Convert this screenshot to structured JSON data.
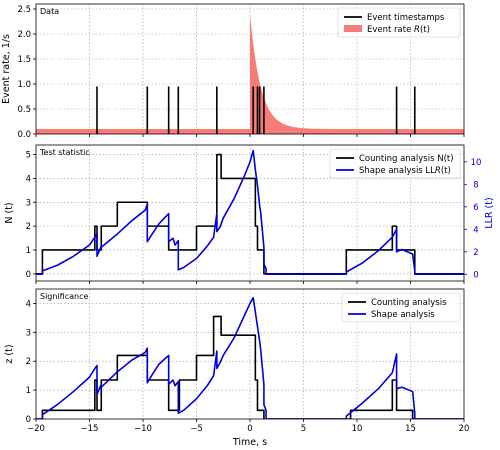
{
  "chart_data": [
    {
      "type": "line",
      "panel_label": "Data",
      "xlabel": "",
      "ylabel": "Event rate, 1/s",
      "xlim": [
        -20,
        20
      ],
      "ylim": [
        0,
        2.6
      ],
      "yticks": [
        0.0,
        0.5,
        1.0,
        1.5,
        2.0,
        2.5
      ],
      "ytick_labels": [
        "0.0",
        "0.5",
        "1.0",
        "1.5",
        "2.0",
        "2.5"
      ],
      "grid": true,
      "legend_position": "top-right",
      "legend": [
        "Event timestamps",
        "Event rate R(t)"
      ],
      "colors": {
        "timestamps": "#000000",
        "rate": "#f77b77"
      },
      "event_timestamps": [
        -14.3,
        -9.6,
        -7.6,
        -6.7,
        -3.1,
        0.3,
        0.7,
        0.9,
        1.3,
        13.7,
        15.4
      ],
      "event_line_height": 0.95,
      "rate_baseline": 0.1,
      "rate_peak": 2.4,
      "rate_onset": 0.0,
      "rate_decay_s": 1.0
    },
    {
      "type": "line",
      "panel_label": "Test statistic",
      "xlabel": "",
      "ylabel": "N (t)",
      "y2label": "LLR (t)",
      "xlim": [
        -20,
        20
      ],
      "ylim": [
        -0.3,
        5.4
      ],
      "y2lim": [
        -0.6,
        11.5
      ],
      "yticks": [
        0,
        1,
        2,
        3,
        4,
        5
      ],
      "ytick_labels": [
        "0",
        "1",
        "2",
        "3",
        "4",
        "5"
      ],
      "y2ticks": [
        0,
        2,
        4,
        6,
        8,
        10
      ],
      "y2tick_labels": [
        "0",
        "2",
        "4",
        "6",
        "8",
        "10"
      ],
      "grid": true,
      "legend_position": "top-right",
      "series": [
        {
          "name": "Counting analysis N(t)",
          "color": "#000000",
          "axis": "left",
          "x": [
            -20,
            -19.4,
            -19.4,
            -14.5,
            -14.5,
            -14.3,
            -14.3,
            -13.9,
            -13.9,
            -12.4,
            -12.4,
            -11.7,
            -11.7,
            -9.8,
            -9.8,
            -9.6,
            -9.6,
            -9.2,
            -9.2,
            -7.6,
            -7.6,
            -7.2,
            -7.2,
            -6.6,
            -6.6,
            -5.0,
            -5.0,
            -4.4,
            -4.4,
            -3.4,
            -3.4,
            -3.1,
            -3.1,
            -2.7,
            -2.7,
            0.0,
            0.0,
            0.5,
            0.5,
            0.7,
            0.7,
            0.9,
            0.9,
            1.3,
            1.3,
            1.5,
            1.5,
            9.0,
            9.0,
            9.4,
            9.4,
            13.3,
            13.3,
            13.7,
            13.7,
            15.2,
            15.2,
            15.4,
            15.4,
            20
          ],
          "y": [
            0,
            0,
            1,
            1,
            2,
            2,
            1,
            1,
            2,
            2,
            3,
            3,
            3,
            3,
            3,
            3,
            2,
            2,
            2,
            2,
            1,
            1,
            1,
            1,
            1,
            1,
            2,
            2,
            2,
            2,
            2,
            2,
            5,
            5,
            4,
            4,
            4,
            4,
            2,
            2,
            1,
            1,
            1,
            1,
            0,
            0,
            0,
            0,
            1,
            1,
            1,
            1,
            2,
            2,
            1,
            1,
            1,
            1,
            0,
            0
          ]
        },
        {
          "name": "Shape analysis LLR(t)",
          "color": "#0000dd",
          "axis": "right",
          "x": [
            -20,
            -19.4,
            -19.4,
            -18.0,
            -16.5,
            -15.0,
            -14.5,
            -14.3,
            -14.3,
            -13.9,
            -13.9,
            -12.5,
            -11.0,
            -9.8,
            -9.6,
            -9.6,
            -9.2,
            -8.5,
            -7.6,
            -7.6,
            -7.2,
            -7.0,
            -6.7,
            -6.7,
            -6.2,
            -5.0,
            -4.0,
            -3.4,
            -3.1,
            -3.1,
            -2.8,
            -2.5,
            -1.5,
            -0.5,
            0.0,
            0.3,
            0.5,
            0.7,
            0.9,
            1.0,
            1.3,
            1.3,
            1.5,
            1.5,
            9.0,
            9.0,
            10.5,
            12.0,
            13.3,
            13.7,
            13.7,
            14.2,
            15.2,
            15.4,
            15.4,
            20
          ],
          "y": [
            0,
            0,
            0.3,
            0.8,
            1.6,
            2.6,
            3.3,
            3.6,
            1.6,
            2.5,
            2.4,
            3.5,
            4.8,
            5.7,
            6.2,
            2.9,
            3.5,
            4.5,
            5.4,
            2.9,
            3.2,
            2.6,
            3.0,
            0.4,
            0.6,
            1.4,
            2.5,
            3.3,
            5.4,
            3.8,
            4.2,
            5.0,
            6.7,
            8.8,
            10.0,
            11.0,
            9.3,
            7.9,
            6.1,
            5.5,
            2.4,
            0.9,
            0.5,
            0,
            0,
            0.2,
            1.0,
            2.1,
            3.3,
            4.0,
            2.0,
            2.2,
            1.8,
            0.3,
            0,
            0
          ]
        }
      ]
    },
    {
      "type": "line",
      "panel_label": "Significance",
      "xlabel": "Time, s",
      "ylabel": "z (t)",
      "xlim": [
        -20,
        20
      ],
      "ylim": [
        0,
        4.5
      ],
      "yticks": [
        0,
        1,
        2,
        3,
        4
      ],
      "ytick_labels": [
        "0",
        "1",
        "2",
        "3",
        "4"
      ],
      "xticks": [
        -20,
        -15,
        -10,
        -5,
        0,
        5,
        10,
        15,
        20
      ],
      "xtick_labels": [
        "−20",
        "−15",
        "−10",
        "−5",
        "0",
        "5",
        "10",
        "15",
        "20"
      ],
      "grid": true,
      "legend_position": "top-right",
      "series": [
        {
          "name": "Counting analysis",
          "color": "#000000",
          "x": [
            -20,
            -19.4,
            -19.4,
            -14.5,
            -14.5,
            -14.3,
            -14.3,
            -13.9,
            -13.9,
            -12.4,
            -12.4,
            -11.7,
            -11.7,
            -9.8,
            -9.8,
            -9.6,
            -9.6,
            -9.2,
            -9.2,
            -7.6,
            -7.6,
            -7.2,
            -7.2,
            -6.6,
            -6.6,
            -5.0,
            -5.0,
            -4.4,
            -4.4,
            -3.4,
            -3.4,
            -3.1,
            -3.1,
            -2.7,
            -2.7,
            0.0,
            0.0,
            0.5,
            0.5,
            0.7,
            0.7,
            1.3,
            1.3,
            9.4,
            9.4,
            13.3,
            13.3,
            13.7,
            13.7,
            15.2,
            15.2,
            20
          ],
          "y": [
            0,
            0,
            0.3,
            0.3,
            1.35,
            1.35,
            0.3,
            0.3,
            1.35,
            1.35,
            2.2,
            2.2,
            2.2,
            2.2,
            2.2,
            2.2,
            1.35,
            1.35,
            1.35,
            1.35,
            0.3,
            0.3,
            0.3,
            0.3,
            1.35,
            1.35,
            2.2,
            2.2,
            2.2,
            2.2,
            3.55,
            3.55,
            3.55,
            3.55,
            2.9,
            2.9,
            2.9,
            2.9,
            1.35,
            1.35,
            0.3,
            0.3,
            0,
            0,
            0.3,
            0.3,
            1.35,
            1.35,
            0.3,
            0.3,
            0,
            0
          ]
        },
        {
          "name": "Shape analysis",
          "color": "#0000dd",
          "x": [
            -20,
            -19.4,
            -19.4,
            -18.0,
            -16.5,
            -15.0,
            -14.5,
            -14.3,
            -14.3,
            -13.9,
            -13.9,
            -12.5,
            -11.0,
            -9.8,
            -9.6,
            -9.6,
            -9.2,
            -8.5,
            -7.6,
            -7.6,
            -7.2,
            -7.0,
            -6.7,
            -6.7,
            -6.2,
            -5.0,
            -4.0,
            -3.4,
            -3.1,
            -3.1,
            -2.8,
            -2.5,
            -1.5,
            -0.5,
            0.0,
            0.3,
            0.5,
            0.7,
            0.9,
            1.0,
            1.3,
            1.3,
            1.5,
            1.5,
            9.0,
            9.0,
            10.5,
            12.0,
            13.3,
            13.7,
            13.7,
            14.2,
            15.2,
            15.4,
            15.4,
            20
          ],
          "y": [
            0,
            0,
            0.15,
            0.5,
            0.95,
            1.45,
            1.75,
            1.85,
            0.85,
            1.2,
            1.1,
            1.6,
            2.05,
            2.3,
            2.45,
            1.25,
            1.5,
            1.9,
            2.2,
            1.2,
            1.35,
            1.15,
            1.3,
            0.2,
            0.3,
            0.7,
            1.15,
            1.5,
            2.35,
            1.75,
            1.95,
            2.2,
            2.8,
            3.6,
            4.0,
            4.2,
            3.7,
            3.2,
            2.7,
            2.4,
            1.2,
            0.5,
            0.3,
            0,
            0,
            0.1,
            0.55,
            1.05,
            1.6,
            2.25,
            1.05,
            1.1,
            0.95,
            0.2,
            0,
            0
          ]
        }
      ]
    }
  ]
}
